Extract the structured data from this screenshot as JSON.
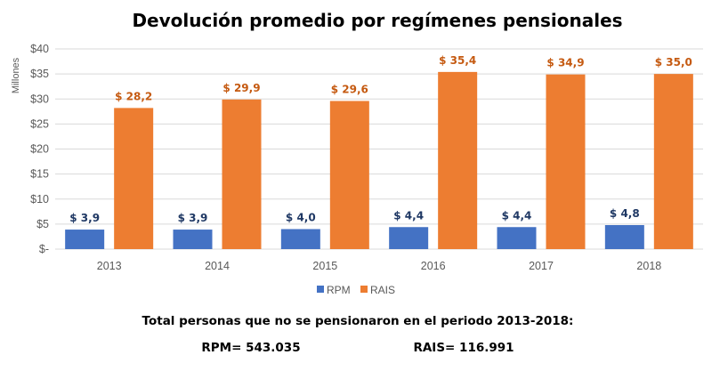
{
  "chart_data": {
    "type": "bar",
    "title": "Devolución promedio por regímenes pensionales",
    "ylabel": "Millones",
    "xlabel": "",
    "categories": [
      "2013",
      "2014",
      "2015",
      "2016",
      "2017",
      "2018"
    ],
    "ylim": [
      0,
      40
    ],
    "yticks": [
      0,
      5,
      10,
      15,
      20,
      25,
      30,
      35,
      40
    ],
    "ytick_labels": [
      "$-",
      "$5",
      "$10",
      "$15",
      "$20",
      "$25",
      "$30",
      "$35",
      "$40"
    ],
    "grid": true,
    "legend": "bottom",
    "series": [
      {
        "name": "RPM",
        "color": "#4472C4",
        "label_color": "#1F3864",
        "values": [
          3.9,
          3.9,
          4.0,
          4.4,
          4.4,
          4.8
        ],
        "labels": [
          "$ 3,9",
          "$ 3,9",
          "$ 4,0",
          "$ 4,4",
          "$ 4,4",
          "$ 4,8"
        ]
      },
      {
        "name": "RAIS",
        "color": "#ED7D31",
        "label_color": "#C55A11",
        "values": [
          28.2,
          29.9,
          29.6,
          35.4,
          34.9,
          35.0
        ],
        "labels": [
          "$ 28,2",
          "$ 29,9",
          "$ 29,6",
          "$ 35,4",
          "$ 34,9",
          "$ 35,0"
        ]
      }
    ]
  },
  "notes": {
    "headline": "Total personas que no se pensionaron en el periodo 2013-2018:",
    "rpm_total": "RPM= 543.035",
    "rais_total": "RAIS= 116.991"
  }
}
